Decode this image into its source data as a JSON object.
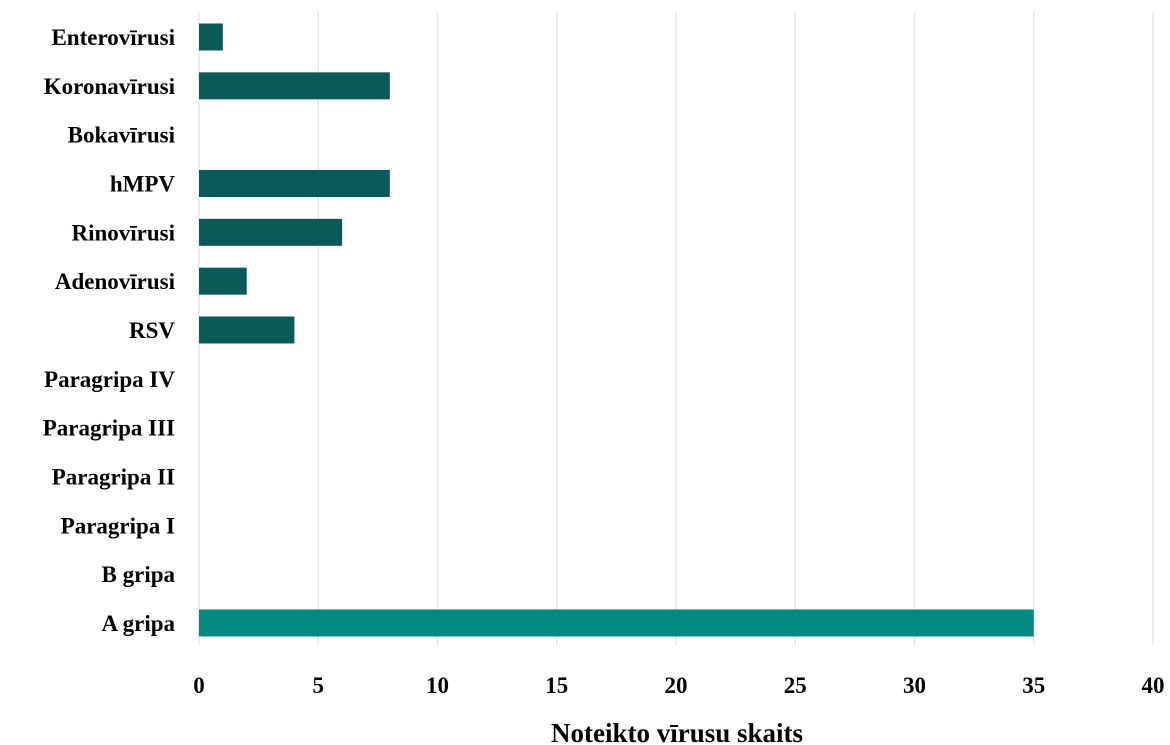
{
  "chart_data": {
    "type": "bar",
    "orientation": "horizontal",
    "categories": [
      "Enterovīrusi",
      "Koronavīrusi",
      "Bokavīrusi",
      "hMPV",
      "Rinovīrusi",
      "Adenovīrusi",
      "RSV",
      "Paragripa IV",
      "Paragripa III",
      "Paragripa II",
      "Paragripa I",
      "B gripa",
      "A gripa"
    ],
    "values": [
      1,
      8,
      0,
      8,
      6,
      2,
      4,
      0,
      0,
      0,
      0,
      0,
      35
    ],
    "colors": [
      "#0b5a5a",
      "#0b5a5a",
      "#0b5a5a",
      "#0b5a5a",
      "#0b5a5a",
      "#0b5a5a",
      "#0b5a5a",
      "#0b5a5a",
      "#0b5a5a",
      "#0b5a5a",
      "#0b5a5a",
      "#0b5a5a",
      "#008a80"
    ],
    "xlabel": "Noteikto vīrusu skaits",
    "ylabel": "",
    "xlim": [
      0,
      40
    ],
    "xticks": [
      0,
      5,
      10,
      15,
      20,
      25,
      30,
      35,
      40
    ],
    "grid": true
  }
}
